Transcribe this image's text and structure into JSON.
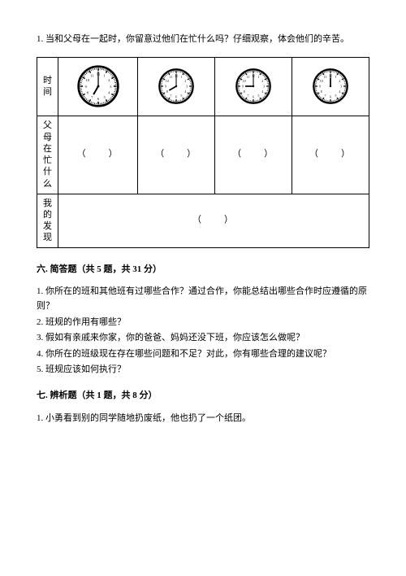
{
  "intro_number": "1.",
  "intro_text": "当和父母在一起时，你留意过他们在忙什么吗？仔细观察，体会他们的辛苦。",
  "table": {
    "row_labels": {
      "time": "时间",
      "busy": "父母在忙什么",
      "finding": "我的发现"
    },
    "paren_open": "（",
    "paren_close": "）",
    "clocks": [
      {
        "hour": 7,
        "minute": 0,
        "size": 54
      },
      {
        "hour": 8,
        "minute": 0,
        "size": 46
      },
      {
        "hour": 9,
        "minute": 0,
        "size": 46
      },
      {
        "hour": 12,
        "minute": 0,
        "size": 46
      }
    ],
    "clock_style": {
      "face_fill": "#ffffff",
      "stroke": "#000000",
      "outer_stroke_width": 3,
      "tick_width": 1.2,
      "hour_hand_width": 2.2,
      "minute_hand_width": 1.4,
      "numeral_fontsize": 5
    }
  },
  "section6": {
    "title": "六. 简答题（共 5 题，共 31 分）",
    "items": [
      "1. 你所在的班和其他班有过哪些合作？通过合作，你能总结出哪些合作时应遵循的原则？",
      "2. 班规的作用有哪些？",
      "3. 假如有亲戚来你家，你的爸爸、妈妈还没下班，你应该怎么做呢？",
      "4. 你所在的班级现在存在哪些问题和不足？对此，你有哪些合理的建议呢？",
      "5. 班规应该如何执行？"
    ]
  },
  "section7": {
    "title": "七. 辨析题（共 1 题，共 8 分）",
    "items": [
      "1. 小勇看到别的同学随地扔废纸，他也扔了一个纸团。"
    ]
  }
}
